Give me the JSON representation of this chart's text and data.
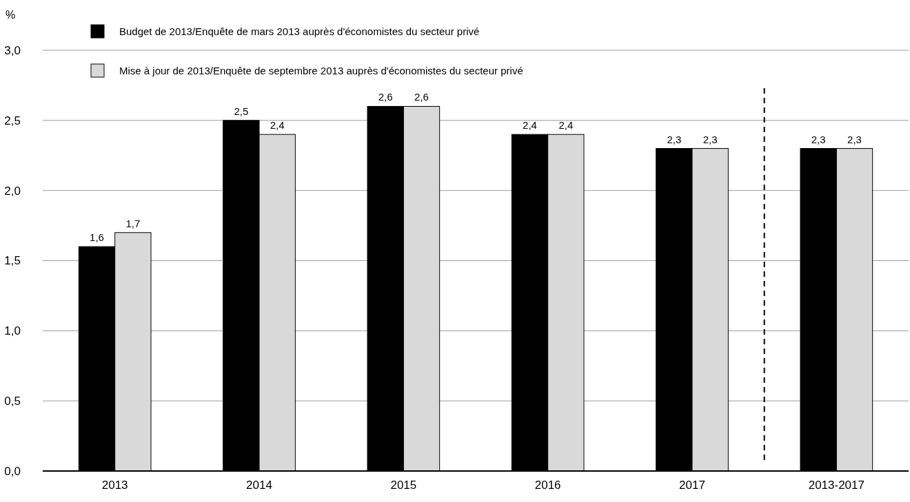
{
  "chart_data": {
    "type": "bar",
    "ylabel": "%",
    "categories": [
      "2013",
      "2014",
      "2015",
      "2016",
      "2017",
      "2013-2017"
    ],
    "series": [
      {
        "name": "Budget de 2013/Enquête de mars 2013 auprès d'économistes du secteur privé",
        "color": "#000000",
        "values": [
          1.6,
          2.5,
          2.6,
          2.4,
          2.3,
          2.3
        ],
        "value_labels": [
          "1,6",
          "2,5",
          "2,6",
          "2,4",
          "2,3",
          "2,3"
        ]
      },
      {
        "name": "Mise à jour de 2013/Enquête de septembre 2013 auprès d'économistes du secteur privé",
        "color": "#d9d9d9",
        "values": [
          1.7,
          2.4,
          2.6,
          2.4,
          2.3,
          2.3
        ],
        "value_labels": [
          "1,7",
          "2,4",
          "2,6",
          "2,4",
          "2,3",
          "2,3"
        ]
      }
    ],
    "ylim": [
      0,
      3
    ],
    "yticks": [
      {
        "value": 0,
        "label": "0,0"
      },
      {
        "value": 0.5,
        "label": "0,5"
      },
      {
        "value": 1,
        "label": "1,0"
      },
      {
        "value": 1.5,
        "label": "1,5"
      },
      {
        "value": 2,
        "label": "2,0"
      },
      {
        "value": 2.5,
        "label": "2,5"
      },
      {
        "value": 3,
        "label": "3,0"
      }
    ],
    "grid": "y",
    "legend": "top left"
  }
}
